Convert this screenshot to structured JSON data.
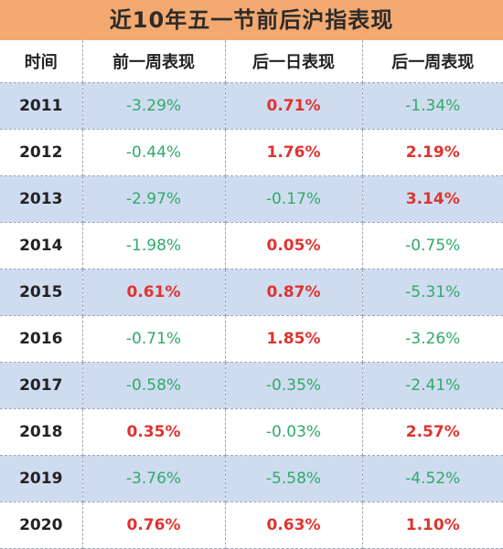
{
  "title": "近10年五一节前后沪指表现",
  "headers": [
    "时间",
    "前一周表现",
    "后一日表现",
    "后一周表现"
  ],
  "rows": [
    {
      "year": "2011",
      "cells": [
        "-3.29%",
        "0.71%",
        "-1.34%"
      ]
    },
    {
      "year": "2012",
      "cells": [
        "-0.44%",
        "1.76%",
        "2.19%"
      ]
    },
    {
      "year": "2013",
      "cells": [
        "-2.97%",
        "-0.17%",
        "3.14%"
      ]
    },
    {
      "year": "2014",
      "cells": [
        "-1.98%",
        "0.05%",
        "-0.75%"
      ]
    },
    {
      "year": "2015",
      "cells": [
        "0.61%",
        "0.87%",
        "-5.31%"
      ]
    },
    {
      "year": "2016",
      "cells": [
        "-0.71%",
        "1.85%",
        "-3.26%"
      ]
    },
    {
      "year": "2017",
      "cells": [
        "-0.58%",
        "-0.35%",
        "-2.41%"
      ]
    },
    {
      "year": "2018",
      "cells": [
        "0.35%",
        "-0.03%",
        "2.57%"
      ]
    },
    {
      "year": "2019",
      "cells": [
        "-3.76%",
        "-5.58%",
        "-4.52%"
      ]
    },
    {
      "year": "2020",
      "cells": [
        "0.76%",
        "0.63%",
        "1.10%"
      ]
    }
  ],
  "colors": {
    "title_bg": "#f3a970",
    "row_alt_bg": "#cfdcf0",
    "positive": "#e0332f",
    "negative": "#2faa6a"
  }
}
